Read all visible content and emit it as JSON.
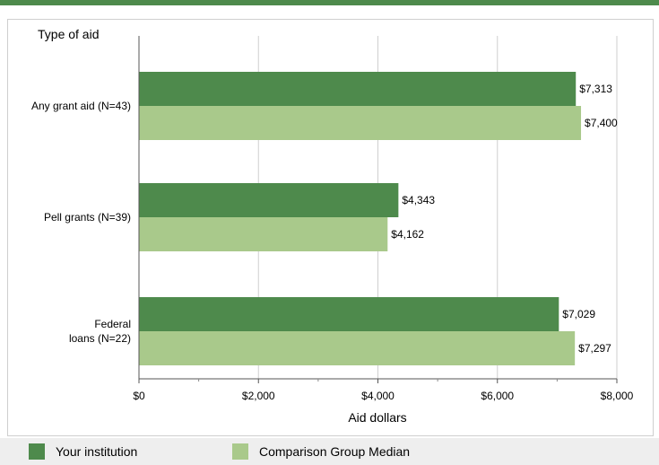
{
  "chart_data": {
    "type": "bar",
    "orientation": "horizontal",
    "title": "Type of aid",
    "xlabel": "Aid dollars",
    "xlim": [
      0,
      8000
    ],
    "xticks": [
      0,
      2000,
      4000,
      6000,
      8000
    ],
    "xtick_labels": [
      "$0",
      "$2,000",
      "$4,000",
      "$6,000",
      "$8,000"
    ],
    "categories": [
      "Any grant aid (N=43)",
      "Pell grants (N=39)",
      "Federal loans (N=22)"
    ],
    "category_lines": [
      [
        "Any grant aid (N=43)"
      ],
      [
        "Pell grants (N=39)"
      ],
      [
        "Federal",
        "loans (N=22)"
      ]
    ],
    "series": [
      {
        "name": "Your institution",
        "values": [
          7313,
          4343,
          7029
        ],
        "labels": [
          "$7,313",
          "$4,343",
          "$7,029"
        ],
        "color": "#4e8a4c"
      },
      {
        "name": "Comparison Group Median",
        "values": [
          7400,
          4162,
          7297
        ],
        "labels": [
          "$7,400",
          "$4,162",
          "$7,297"
        ],
        "color": "#a9c98b"
      }
    ],
    "grid": true,
    "legend_position": "bottom"
  }
}
